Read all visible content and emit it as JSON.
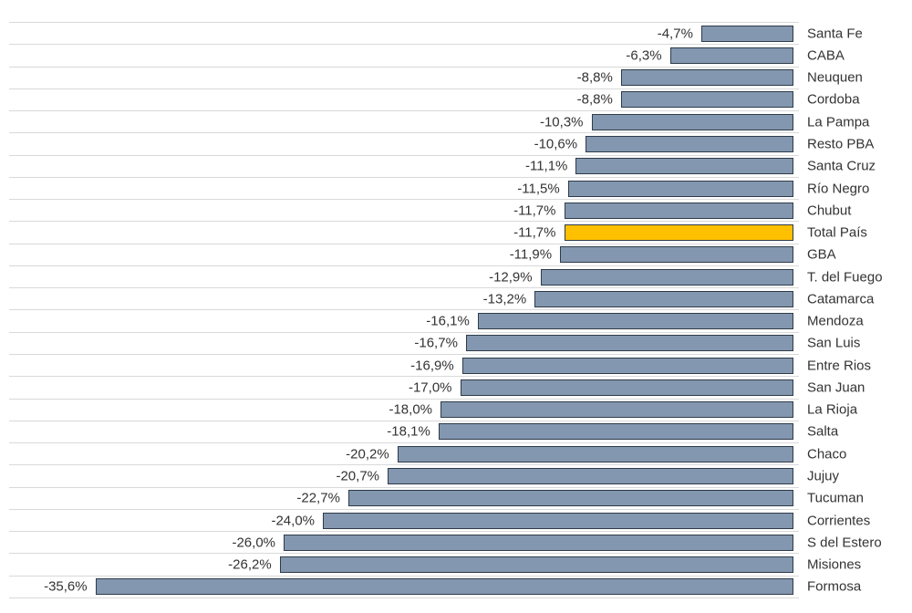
{
  "chart_data": {
    "type": "bar",
    "orientation": "horizontal",
    "title": "",
    "xlabel": "",
    "ylabel": "",
    "xlim": [
      -40,
      0
    ],
    "grid": "horizontal-row-separators",
    "legend": "none",
    "value_format": "percent-comma-decimal",
    "categories": [
      "Santa Fe",
      "CABA",
      "Neuquen",
      "Cordoba",
      "La Pampa",
      "Resto PBA",
      "Santa Cruz",
      "Río Negro",
      "Chubut",
      "Total País",
      "GBA",
      "T. del Fuego",
      "Catamarca",
      "Mendoza",
      "San Luis",
      "Entre Rios",
      "San Juan",
      "La Rioja",
      "Salta",
      "Chaco",
      "Jujuy",
      "Tucuman",
      "Corrientes",
      "S del Estero",
      "Misiones",
      "Formosa"
    ],
    "values": [
      -4.7,
      -6.3,
      -8.8,
      -8.8,
      -10.3,
      -10.6,
      -11.1,
      -11.5,
      -11.7,
      -11.7,
      -11.9,
      -12.9,
      -13.2,
      -16.1,
      -16.7,
      -16.9,
      -17.0,
      -18.0,
      -18.1,
      -20.2,
      -20.7,
      -22.7,
      -24.0,
      -26.0,
      -26.2,
      -35.6
    ],
    "value_labels": [
      "-4,7%",
      "-6,3%",
      "-8,8%",
      "-8,8%",
      "-10,3%",
      "-10,6%",
      "-11,1%",
      "-11,5%",
      "-11,7%",
      "-11,7%",
      "-11,9%",
      "-12,9%",
      "-13,2%",
      "-16,1%",
      "-16,7%",
      "-16,9%",
      "-17,0%",
      "-18,0%",
      "-18,1%",
      "-20,2%",
      "-20,7%",
      "-22,7%",
      "-24,0%",
      "-26,0%",
      "-26,2%",
      "-35,6%"
    ],
    "highlight_index": 9,
    "highlight_category": "Total País",
    "colors": {
      "bar_fill": "#8497B0",
      "bar_border": "#2E3B49",
      "highlight_fill": "#FFC000",
      "gridline": "#D9D9D9",
      "label_text": "#333333",
      "background": "#FFFFFF"
    }
  }
}
